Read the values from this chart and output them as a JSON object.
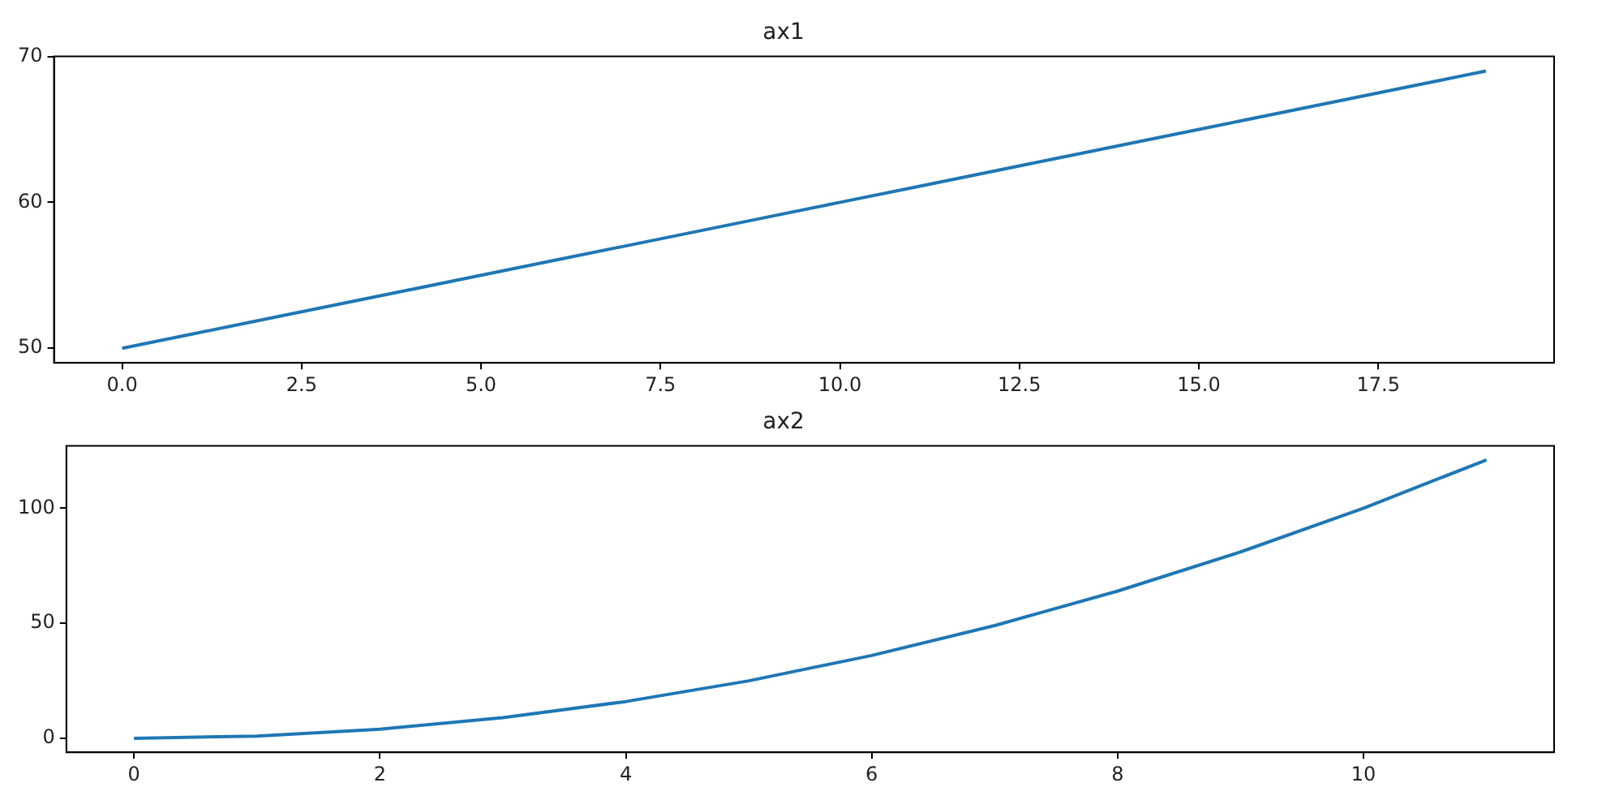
{
  "chart_data": [
    {
      "type": "line",
      "title": "ax1",
      "x": [
        0,
        1,
        2,
        3,
        4,
        5,
        6,
        7,
        8,
        9,
        10,
        11,
        12,
        13,
        14,
        15,
        16,
        17,
        18,
        19
      ],
      "series": [
        {
          "color": "#1f77b4",
          "values": [
            50,
            51,
            52,
            53,
            54,
            55,
            56,
            57,
            58,
            59,
            60,
            61,
            62,
            63,
            64,
            65,
            66,
            67,
            68,
            69
          ]
        }
      ],
      "xlim": [
        -0.95,
        19.95
      ],
      "xticks": [
        {
          "value": 0,
          "label": "0.0"
        },
        {
          "value": 2.5,
          "label": "2.5"
        },
        {
          "value": 5,
          "label": "5.0"
        },
        {
          "value": 7.5,
          "label": "7.5"
        },
        {
          "value": 10,
          "label": "10.0"
        },
        {
          "value": 12.5,
          "label": "12.5"
        },
        {
          "value": 15,
          "label": "15.0"
        },
        {
          "value": 17.5,
          "label": "17.5"
        }
      ],
      "ylim": [
        49,
        70
      ],
      "yticks": [
        50,
        60,
        70
      ],
      "marker": "none"
    },
    {
      "type": "line",
      "title": "ax2",
      "x": [
        0,
        1,
        2,
        3,
        4,
        5,
        6,
        7,
        8,
        9,
        10,
        11
      ],
      "series": [
        {
          "color": "#1f77b4",
          "values": [
            0,
            1,
            4,
            9,
            16,
            25,
            36,
            49,
            64,
            81,
            100,
            121
          ]
        }
      ],
      "xlim": [
        -0.55,
        11.55
      ],
      "xticks": [
        0,
        2,
        4,
        6,
        8,
        10
      ],
      "ylim": [
        -6.05,
        127.05
      ],
      "yticks": [
        0,
        50,
        100
      ],
      "marker": "none"
    }
  ]
}
